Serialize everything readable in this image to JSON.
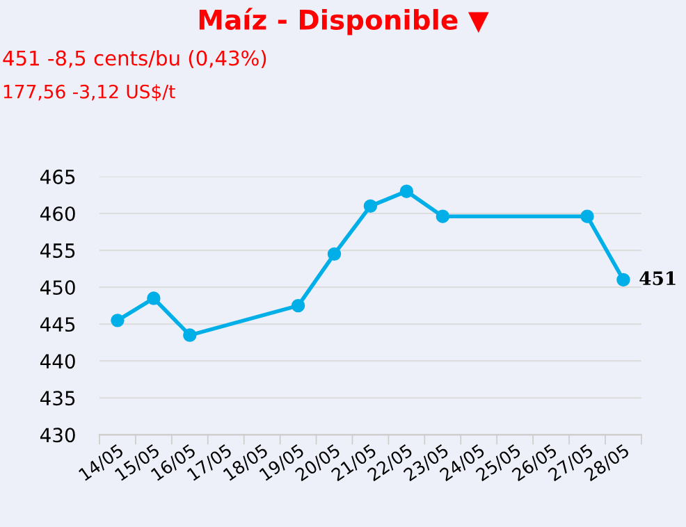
{
  "chart_data": {
    "type": "line",
    "title": "Maíz - Disponible ▼",
    "subtitle": "451 -8,5 cents/bu (0,43%)",
    "annotations": [
      "177,56 -3,12 US$/t"
    ],
    "categories": [
      "14/05",
      "15/05",
      "16/05",
      "17/05",
      "18/05",
      "19/05",
      "20/05",
      "21/05",
      "22/05",
      "23/05",
      "24/05",
      "25/05",
      "26/05",
      "27/05",
      "28/05"
    ],
    "series": [
      {
        "color": "#00aee8",
        "values": [
          445.5,
          448.5,
          443.5,
          null,
          null,
          447.5,
          454.5,
          461,
          463,
          459.6,
          null,
          null,
          null,
          459.6,
          451
        ],
        "value_labels": [
          null,
          null,
          null,
          null,
          null,
          null,
          null,
          null,
          null,
          null,
          null,
          null,
          null,
          null,
          "451"
        ]
      }
    ],
    "ylim": [
      430,
      465
    ],
    "yticks": [
      430,
      435,
      440,
      445,
      450,
      455,
      460,
      465
    ],
    "grid": "y",
    "marker": "circle",
    "line_style": "solid"
  }
}
